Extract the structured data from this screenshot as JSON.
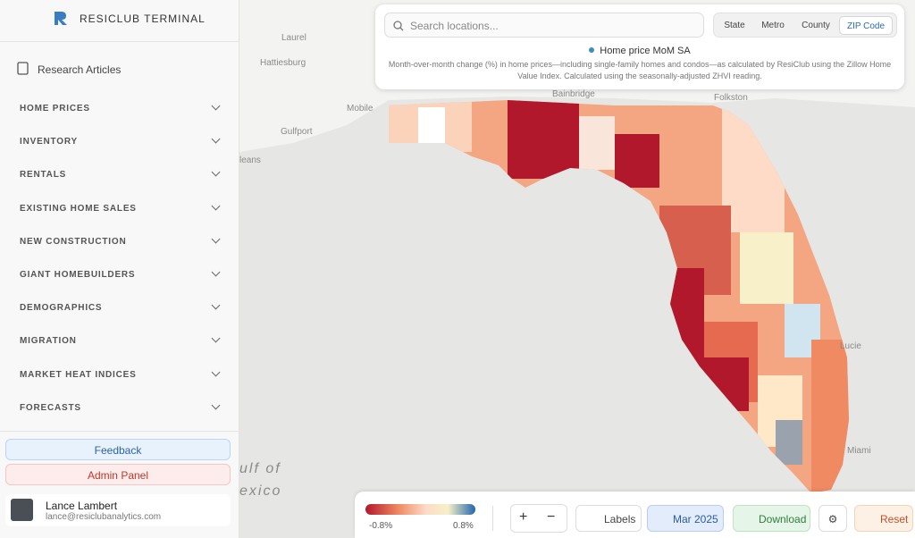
{
  "sidebar": {
    "brand": "RESICLUB TERMINAL",
    "research": "Research Articles",
    "nav": [
      "HOME PRICES",
      "INVENTORY",
      "RENTALS",
      "EXISTING HOME SALES",
      "NEW CONSTRUCTION",
      "GIANT HOMEBUILDERS",
      "DEMOGRAPHICS",
      "MIGRATION",
      "MARKET HEAT INDICES",
      "FORECASTS"
    ],
    "feedback": "Feedback",
    "admin": "Admin Panel",
    "user": {
      "name": "Lance Lambert",
      "email": "lance@resiclubanalytics.com"
    }
  },
  "search": {
    "placeholder": "Search locations...",
    "tabs": [
      "State",
      "Metro",
      "County",
      "ZIP Code"
    ],
    "active_tab": 3
  },
  "metric": {
    "title": "Home price MoM SA",
    "description": "Month-over-month change (%) in home prices—including single-family homes and condos—as calculated by ResiClub using the Zillow Home Value Index. Calculated using the seasonally-adjusted ZHVI reading."
  },
  "map_labels": [
    "Laurel",
    "Hattiesburg",
    "Mobile",
    "Gulfport",
    "leans",
    "Bainbridge",
    "Folkston",
    "Lucie",
    "Miami",
    "ulf of",
    "exico"
  ],
  "legend": {
    "min_label": "-0.8%",
    "max_label": "0.8%"
  },
  "toolbar": {
    "labels": "Labels",
    "date": "Mar 2025",
    "download": "Download",
    "reset": "Reset"
  }
}
